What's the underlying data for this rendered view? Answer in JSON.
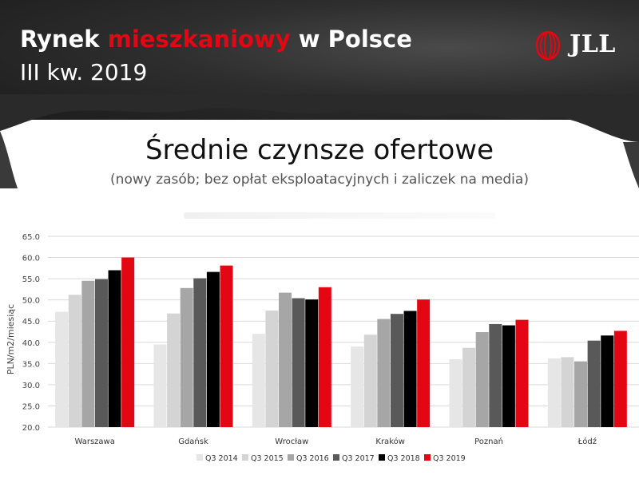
{
  "header": {
    "title_part1": "Rynek ",
    "title_accent": "mieszkaniowy",
    "title_part2": " w Polsce",
    "subtitle": "III kw. 2019",
    "logo_text": "JLL",
    "accent_color": "#e30613"
  },
  "main": {
    "title": "Średnie czynsze ofertowe",
    "subtitle": "(nowy zasób; bez opłat eksploatacyjnych i zaliczek na media)"
  },
  "chart_data": {
    "type": "bar",
    "categories": [
      "Warszawa",
      "Gdańsk",
      "Wrocław",
      "Kraków",
      "Poznań",
      "Łódź"
    ],
    "series": [
      {
        "name": "Q3 2014",
        "color": "#e6e6e6",
        "values": [
          47.2,
          39.5,
          42.0,
          39.0,
          36.0,
          36.2
        ]
      },
      {
        "name": "Q3 2015",
        "color": "#d4d4d4",
        "values": [
          51.2,
          46.8,
          47.5,
          41.8,
          38.7,
          36.5
        ]
      },
      {
        "name": "Q3 2016",
        "color": "#a6a6a6",
        "values": [
          54.5,
          52.8,
          51.7,
          45.5,
          42.4,
          35.5
        ]
      },
      {
        "name": "Q3 2017",
        "color": "#595959",
        "values": [
          54.9,
          55.1,
          50.4,
          46.7,
          44.3,
          40.4
        ]
      },
      {
        "name": "Q3 2018",
        "color": "#000000",
        "values": [
          57.0,
          56.6,
          50.1,
          47.4,
          44.0,
          41.6
        ]
      },
      {
        "name": "Q3 2019",
        "color": "#e30613",
        "values": [
          60.0,
          58.1,
          53.0,
          50.1,
          45.3,
          42.7
        ]
      }
    ],
    "ylabel": "PLN/m2/miesiąc",
    "ylim": [
      20,
      65
    ],
    "yticks": [
      "20.0",
      "25.0",
      "30.0",
      "35.0",
      "40.0",
      "45.0",
      "50.0",
      "55.0",
      "60.0",
      "65.0"
    ],
    "grid": true,
    "legend_position": "bottom"
  }
}
